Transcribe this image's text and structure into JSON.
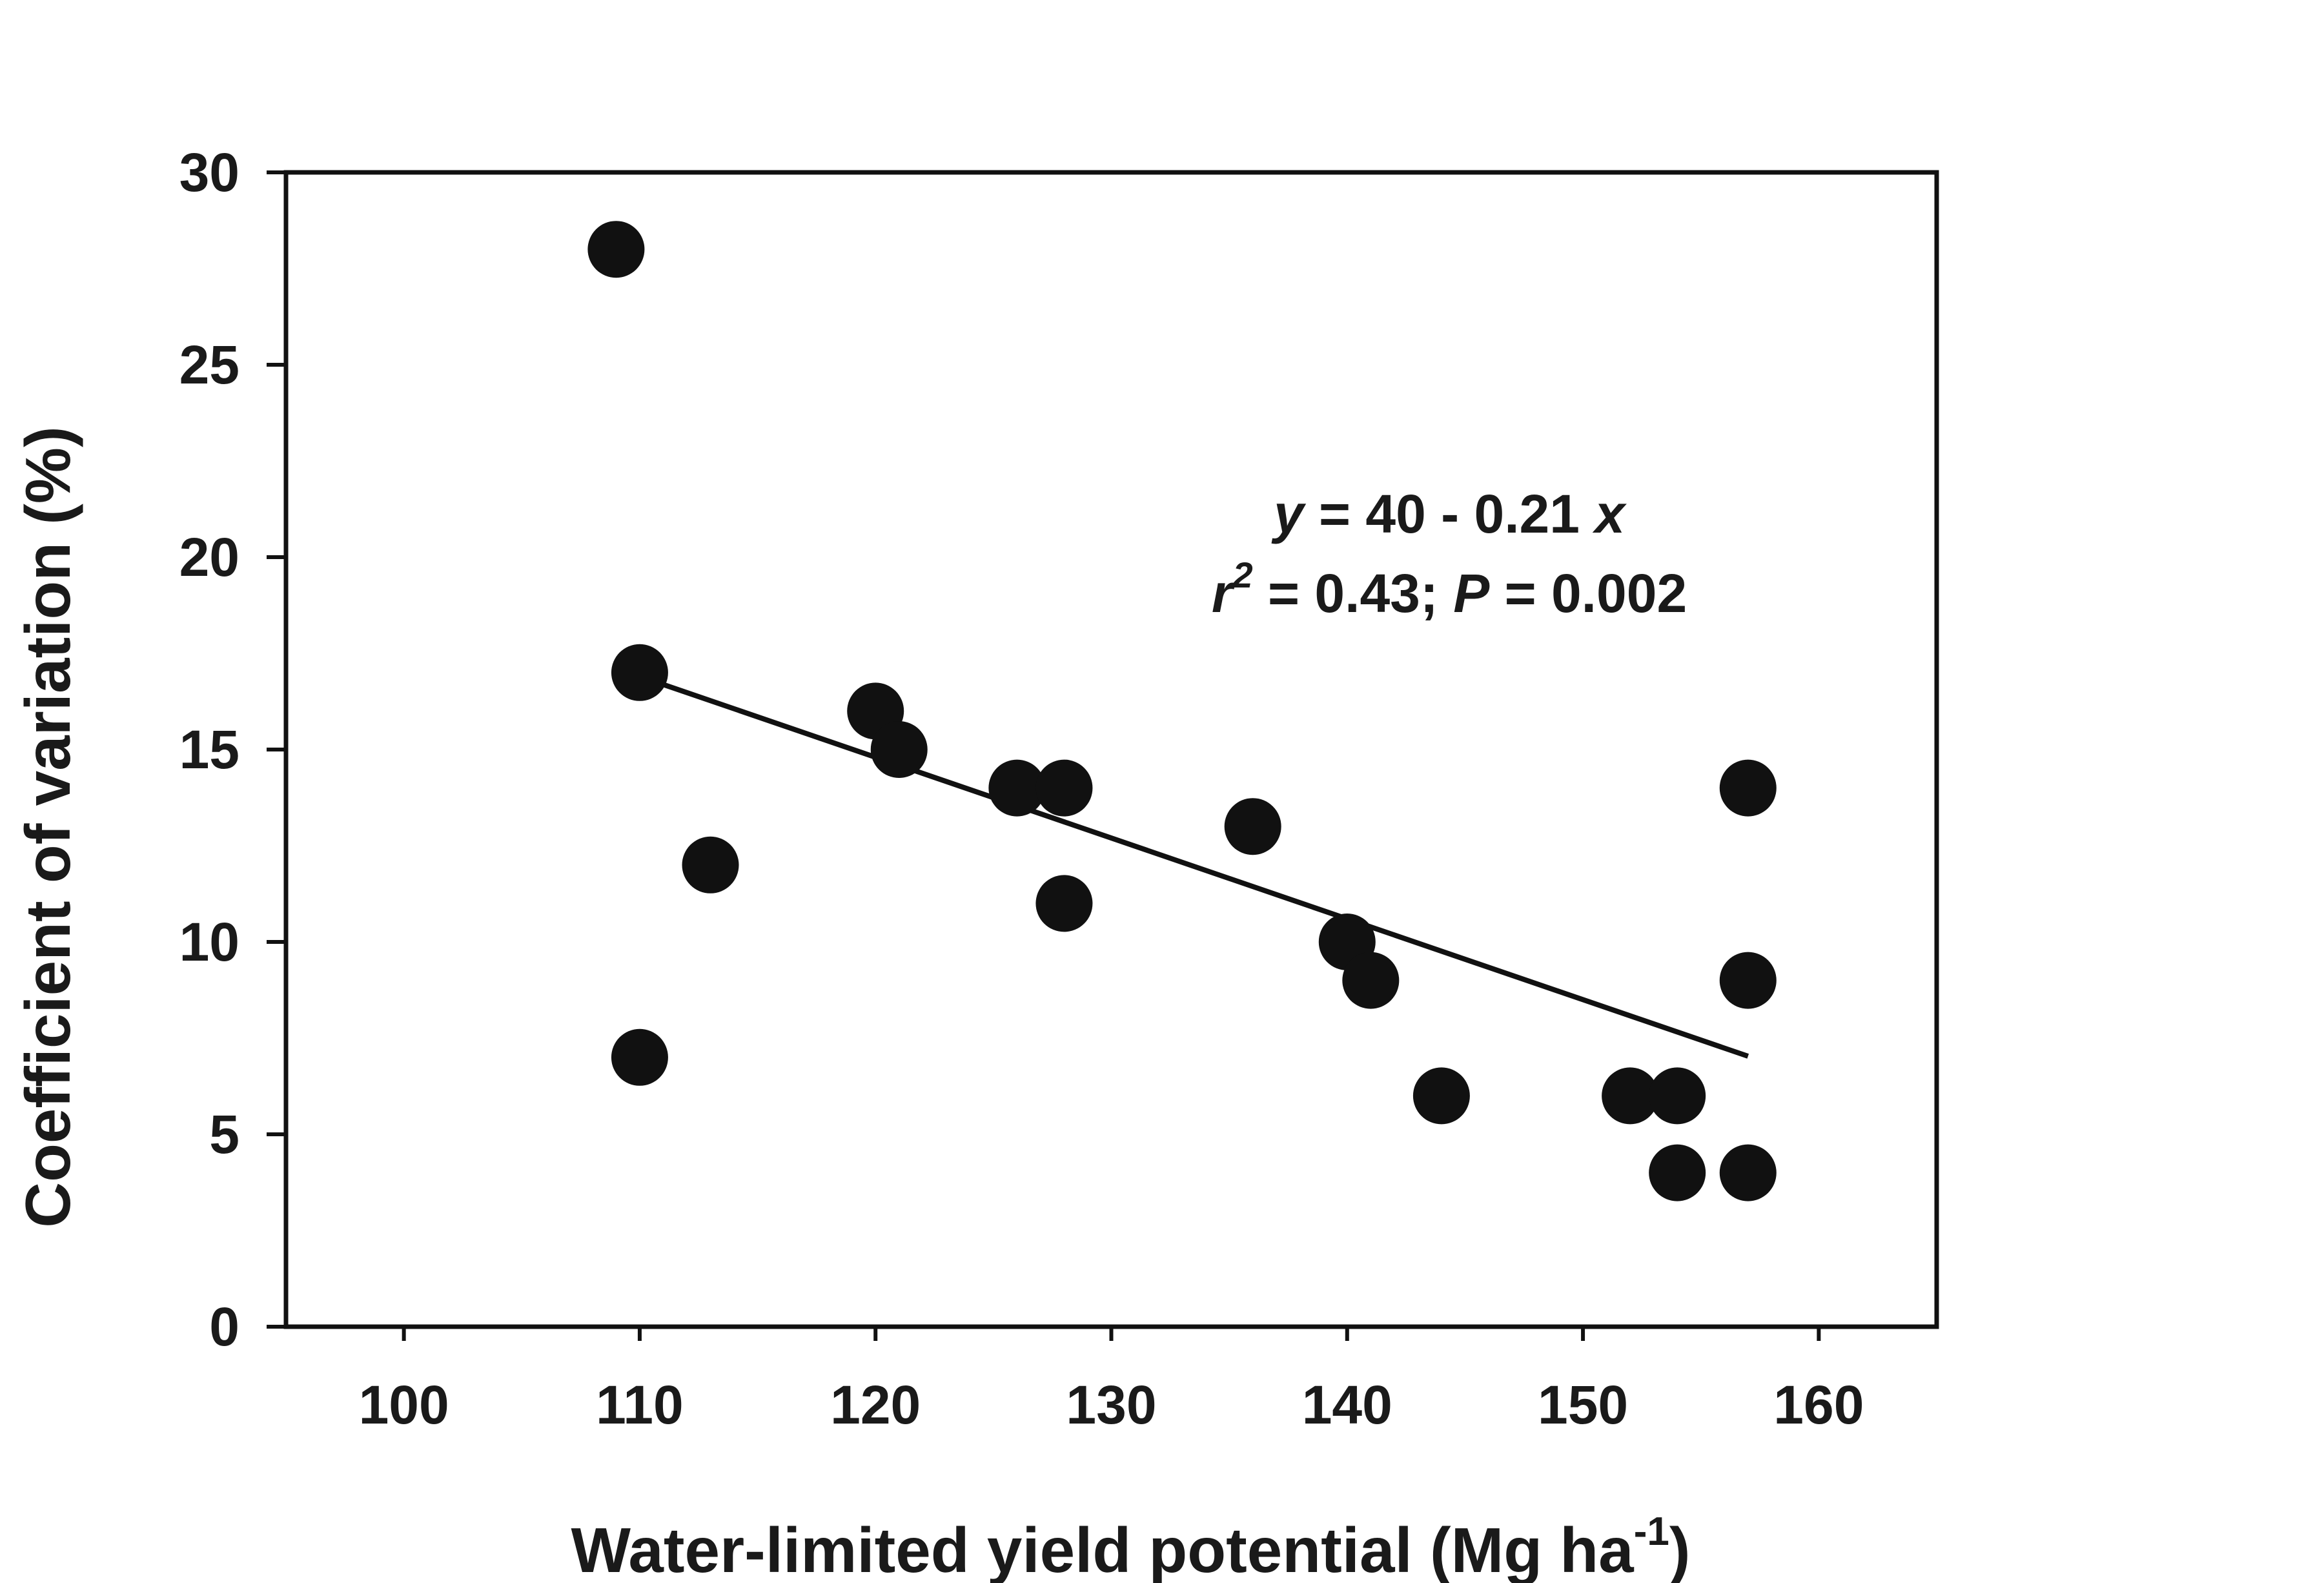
{
  "chart_data": {
    "type": "scatter",
    "xlabel": "Water-limited yield potential (Mg ha-1)",
    "xlabel_parts": {
      "main": "Water-limited yield potential (Mg ha",
      "sup": "-1",
      "close": ")"
    },
    "ylabel": "Coefficient of variation (%)",
    "xlim": [
      95,
      165
    ],
    "ylim": [
      0,
      30
    ],
    "xticks": [
      100,
      110,
      120,
      130,
      140,
      150,
      160
    ],
    "yticks": [
      0,
      5,
      10,
      15,
      20,
      25,
      30
    ],
    "grid": false,
    "points": [
      {
        "x": 109,
        "y": 28
      },
      {
        "x": 110,
        "y": 17
      },
      {
        "x": 110,
        "y": 7
      },
      {
        "x": 113,
        "y": 12
      },
      {
        "x": 120,
        "y": 16
      },
      {
        "x": 121,
        "y": 15
      },
      {
        "x": 126,
        "y": 14
      },
      {
        "x": 128,
        "y": 14
      },
      {
        "x": 128,
        "y": 11
      },
      {
        "x": 136,
        "y": 13
      },
      {
        "x": 140,
        "y": 10
      },
      {
        "x": 141,
        "y": 9
      },
      {
        "x": 144,
        "y": 6
      },
      {
        "x": 152,
        "y": 6
      },
      {
        "x": 154,
        "y": 6
      },
      {
        "x": 154,
        "y": 4
      },
      {
        "x": 157,
        "y": 14
      },
      {
        "x": 157,
        "y": 9
      },
      {
        "x": 157,
        "y": 4
      }
    ],
    "regression": {
      "intercept": 40,
      "slope": -0.21,
      "x_range": [
        110,
        157
      ],
      "equation_parts": [
        {
          "text": "y",
          "italic": true
        },
        {
          "text": " = 40 - 0.21 ",
          "italic": false
        },
        {
          "text": "x",
          "italic": true
        }
      ],
      "stats_parts": [
        {
          "text": "r",
          "italic": true
        },
        {
          "text": "2",
          "italic": true,
          "sup": true
        },
        {
          "text": " = 0.43; ",
          "italic": false
        },
        {
          "text": "P",
          "italic": true
        },
        {
          "text": " = 0.002",
          "italic": false
        }
      ]
    },
    "marker_color": "#111111",
    "line_color": "#111111"
  }
}
